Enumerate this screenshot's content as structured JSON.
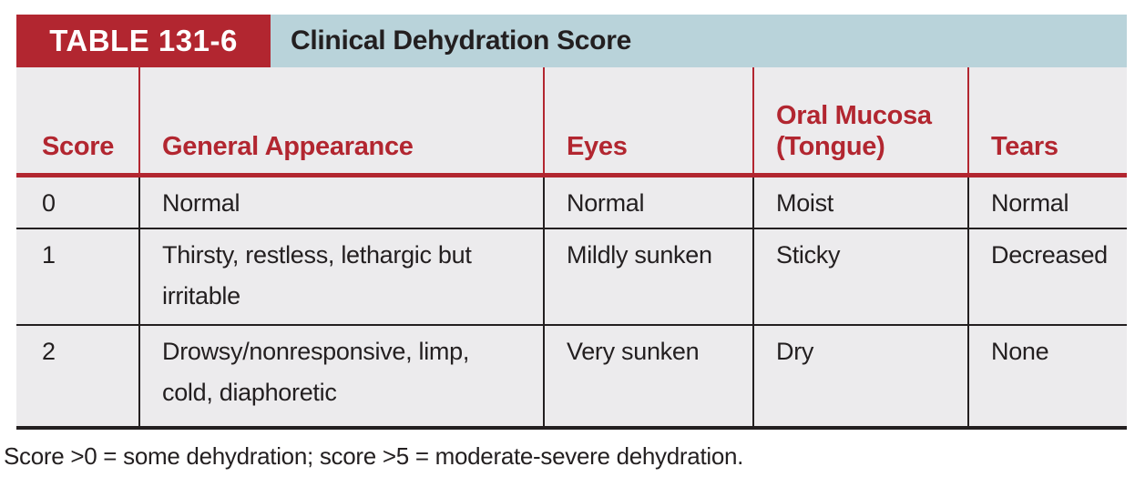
{
  "table": {
    "label": "TABLE 131-6",
    "title": "Clinical Dehydration Score",
    "columns": [
      "Score",
      "General Appearance",
      "Eyes",
      "Oral Mucosa\n(Tongue)",
      "Tears"
    ],
    "rows": [
      [
        "0",
        "Normal",
        "Normal",
        "Moist",
        "Normal"
      ],
      [
        "1",
        "Thirsty, restless, lethargic but\nirritable",
        "Mildly sunken",
        "Sticky",
        "Decreased"
      ],
      [
        "2",
        "Drowsy/nonresponsive, limp,\ncold, diaphoretic",
        "Very sunken",
        "Dry",
        "None"
      ]
    ],
    "footnote": "Score >0 = some dehydration; score >5 = moderate-severe dehydration."
  },
  "colors": {
    "accent_red": "#b22630",
    "title_bar_blue": "#b9d3da",
    "body_gray": "#ecebed",
    "text_dark": "#231f20"
  }
}
